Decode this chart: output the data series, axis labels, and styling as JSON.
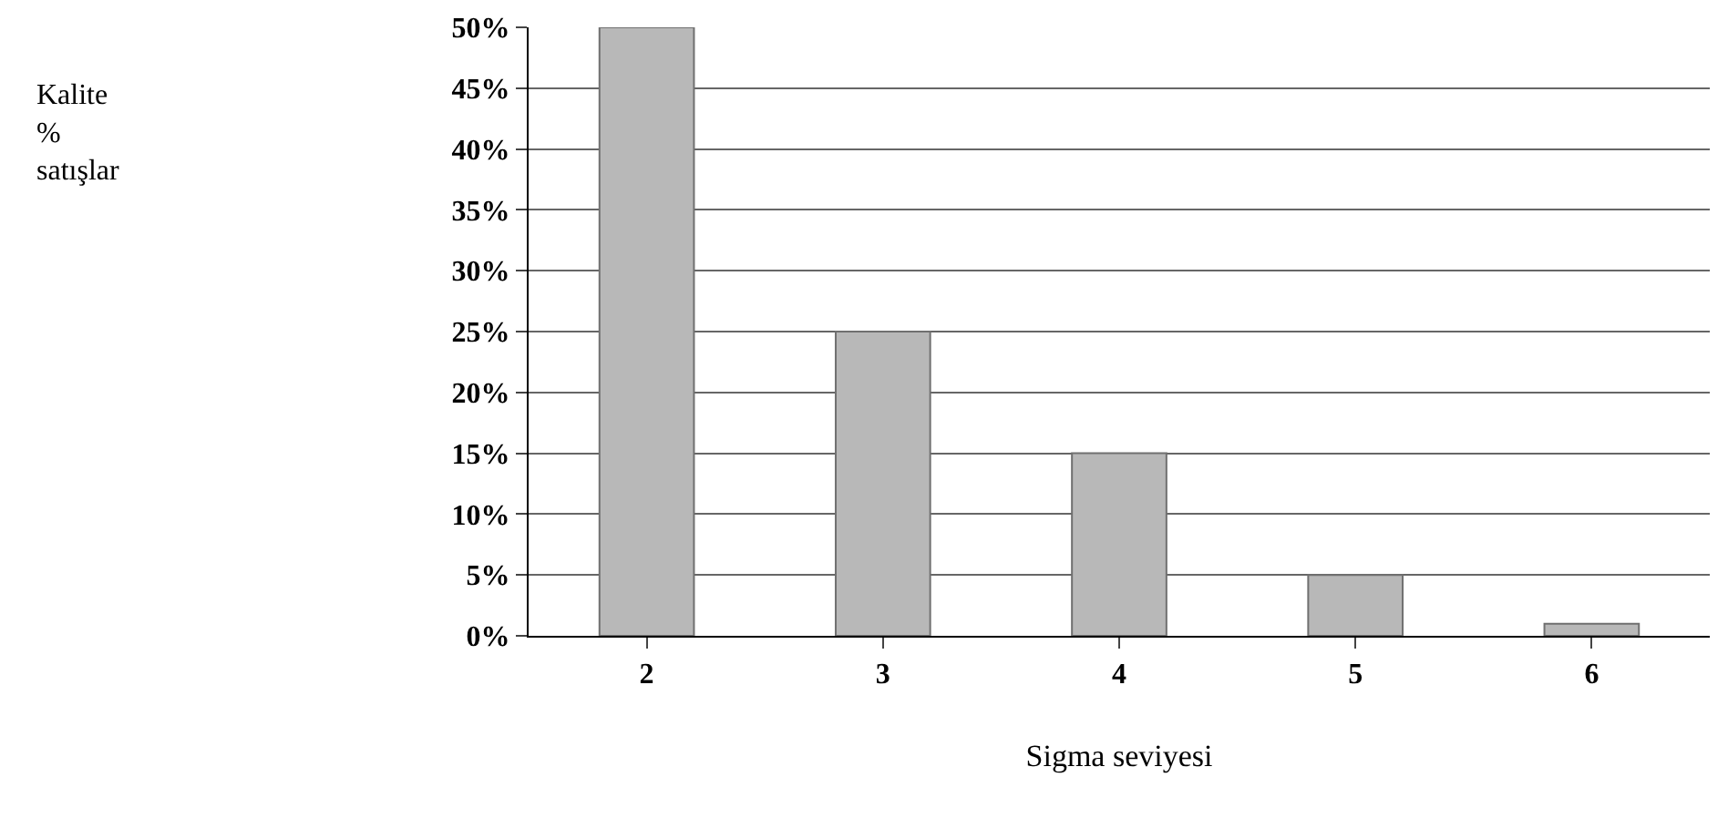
{
  "chart_data": {
    "type": "bar",
    "xlabel": "Sigma seviyesi",
    "annotations": [
      "Kalite % satışlar"
    ],
    "categories": [
      "2",
      "3",
      "4",
      "5",
      "6"
    ],
    "values": [
      50,
      25,
      15,
      5,
      1
    ],
    "color": "#b8b8b8",
    "ylim": [
      0,
      50
    ],
    "yticks": [
      {
        "value": 0,
        "label": "0%"
      },
      {
        "value": 5,
        "label": "5%"
      },
      {
        "value": 10,
        "label": "10%"
      },
      {
        "value": 15,
        "label": "15%"
      },
      {
        "value": 20,
        "label": "20%"
      },
      {
        "value": 25,
        "label": "25%"
      },
      {
        "value": 30,
        "label": "30%"
      },
      {
        "value": 35,
        "label": "35%"
      },
      {
        "value": 40,
        "label": "40%"
      },
      {
        "value": 45,
        "label": "45%"
      },
      {
        "value": 50,
        "label": "50%"
      }
    ],
    "grid": "y"
  }
}
